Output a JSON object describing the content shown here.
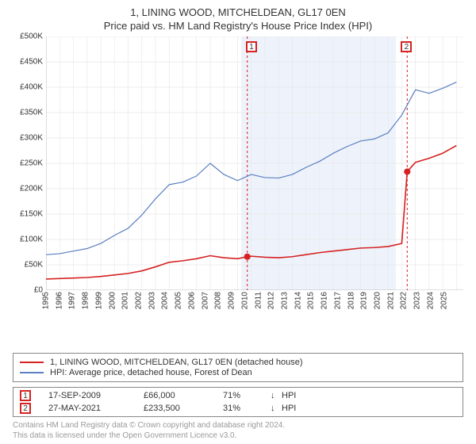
{
  "titles": {
    "line1": "1, LINING WOOD, MITCHELDEAN, GL17 0EN",
    "line2": "Price paid vs. HM Land Registry's House Price Index (HPI)"
  },
  "chart": {
    "type": "line",
    "background_color": "#ffffff",
    "grid_color": "#e6e6e6",
    "axis_color": "#c0c0c0",
    "x": {
      "label": null,
      "years": [
        1995,
        1996,
        1997,
        1998,
        1999,
        2000,
        2001,
        2002,
        2003,
        2004,
        2005,
        2006,
        2007,
        2008,
        2009,
        2010,
        2011,
        2012,
        2013,
        2014,
        2015,
        2016,
        2017,
        2018,
        2019,
        2020,
        2021,
        2022,
        2023,
        2024,
        2025
      ],
      "xmin": 1995,
      "xmax": 2025.5,
      "tick_rotation_deg": -90,
      "tick_fontsize": 10
    },
    "y": {
      "label": null,
      "ylim": [
        0,
        500000
      ],
      "ticks": [
        0,
        50000,
        100000,
        150000,
        200000,
        250000,
        300000,
        350000,
        400000,
        450000,
        500000
      ],
      "tick_labels": [
        "£0",
        "£50K",
        "£100K",
        "£150K",
        "£200K",
        "£250K",
        "£300K",
        "£350K",
        "£400K",
        "£450K",
        "£500K"
      ],
      "tick_fontsize": 10
    },
    "highlight_band": {
      "from_year": 2009.71,
      "to_year": 2021.4,
      "fill": "#eef3fb"
    },
    "series": [
      {
        "id": "price_paid",
        "label": "1, LINING WOOD, MITCHELDEAN, GL17 0EN (detached house)",
        "color": "#d62222",
        "line_width": 1.6,
        "points": [
          [
            1995.0,
            22000
          ],
          [
            1996.0,
            23000
          ],
          [
            1997.0,
            24000
          ],
          [
            1998.0,
            25000
          ],
          [
            1999.0,
            27000
          ],
          [
            2000.0,
            30000
          ],
          [
            2001.0,
            33000
          ],
          [
            2002.0,
            38000
          ],
          [
            2003.0,
            46000
          ],
          [
            2004.0,
            55000
          ],
          [
            2005.0,
            58000
          ],
          [
            2006.0,
            62000
          ],
          [
            2007.0,
            68000
          ],
          [
            2008.0,
            64000
          ],
          [
            2009.0,
            62000
          ],
          [
            2009.71,
            66000
          ],
          [
            2010.0,
            67000
          ],
          [
            2011.0,
            65000
          ],
          [
            2012.0,
            64000
          ],
          [
            2013.0,
            66000
          ],
          [
            2014.0,
            70000
          ],
          [
            2015.0,
            74000
          ],
          [
            2016.0,
            77000
          ],
          [
            2017.0,
            80000
          ],
          [
            2018.0,
            83000
          ],
          [
            2019.0,
            84000
          ],
          [
            2020.0,
            86000
          ],
          [
            2021.0,
            92000
          ],
          [
            2021.4,
            233500
          ],
          [
            2022.0,
            252000
          ],
          [
            2023.0,
            260000
          ],
          [
            2024.0,
            270000
          ],
          [
            2025.0,
            285000
          ]
        ],
        "markers": [
          {
            "year": 2009.71,
            "value": 66000,
            "radius": 4,
            "fill": "#d62222"
          },
          {
            "year": 2021.4,
            "value": 233500,
            "radius": 4,
            "fill": "#d62222"
          }
        ]
      },
      {
        "id": "hpi",
        "label": "HPI: Average price, detached house, Forest of Dean",
        "color": "#5a7fc2",
        "line_width": 1.2,
        "points": [
          [
            1995.0,
            70000
          ],
          [
            1996.0,
            72000
          ],
          [
            1997.0,
            77000
          ],
          [
            1998.0,
            82000
          ],
          [
            1999.0,
            92000
          ],
          [
            2000.0,
            108000
          ],
          [
            2001.0,
            122000
          ],
          [
            2002.0,
            148000
          ],
          [
            2003.0,
            180000
          ],
          [
            2004.0,
            208000
          ],
          [
            2005.0,
            213000
          ],
          [
            2006.0,
            225000
          ],
          [
            2007.0,
            250000
          ],
          [
            2008.0,
            228000
          ],
          [
            2009.0,
            216000
          ],
          [
            2010.0,
            228000
          ],
          [
            2011.0,
            222000
          ],
          [
            2012.0,
            221000
          ],
          [
            2013.0,
            228000
          ],
          [
            2014.0,
            242000
          ],
          [
            2015.0,
            254000
          ],
          [
            2016.0,
            270000
          ],
          [
            2017.0,
            283000
          ],
          [
            2018.0,
            294000
          ],
          [
            2019.0,
            298000
          ],
          [
            2020.0,
            310000
          ],
          [
            2021.0,
            345000
          ],
          [
            2022.0,
            395000
          ],
          [
            2023.0,
            388000
          ],
          [
            2024.0,
            398000
          ],
          [
            2025.0,
            410000
          ]
        ]
      }
    ],
    "events": [
      {
        "n": "1",
        "year": 2009.71,
        "line_color": "#d62222",
        "line_dash": "3,3",
        "callout_top": true
      },
      {
        "n": "2",
        "year": 2021.4,
        "line_color": "#d62222",
        "line_dash": "3,3",
        "callout_top": true
      }
    ]
  },
  "legend": {
    "border_color": "#888888",
    "fontsize": 11
  },
  "event_table": {
    "border_color": "#888888",
    "marker_border": "#d62222",
    "rows": [
      {
        "n": "1",
        "date": "17-SEP-2009",
        "price": "£66,000",
        "pct": "71%",
        "arrow": "↓",
        "vs": "HPI"
      },
      {
        "n": "2",
        "date": "27-MAY-2021",
        "price": "£233,500",
        "pct": "31%",
        "arrow": "↓",
        "vs": "HPI"
      }
    ]
  },
  "footer": {
    "line1": "Contains HM Land Registry data © Crown copyright and database right 2024.",
    "line2": "This data is licensed under the Open Government Licence v3.0.",
    "color": "#999999",
    "fontsize": 10
  }
}
